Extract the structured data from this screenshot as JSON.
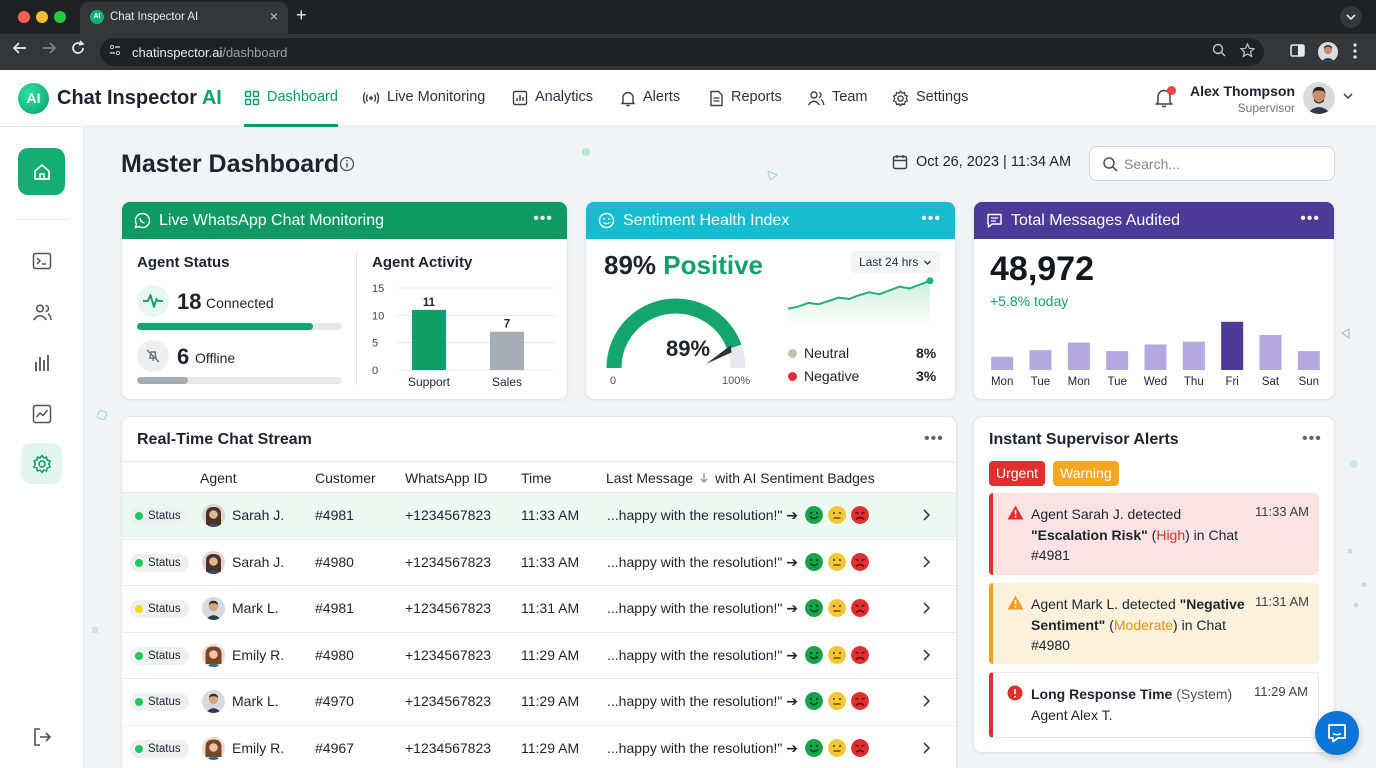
{
  "browser": {
    "tab_title": "Chat Inspector AI",
    "url_host": "chatinspector.ai",
    "url_path": "/dashboard"
  },
  "header": {
    "logo_text": "Chat Inspector",
    "logo_accent": "AI",
    "logo_mark": "AI",
    "nav": [
      {
        "label": "Dashboard",
        "icon": "grid-icon",
        "active": true
      },
      {
        "label": "Live Monitoring",
        "icon": "broadcast-icon"
      },
      {
        "label": "Analytics",
        "icon": "bar-chart-icon"
      },
      {
        "label": "Alerts",
        "icon": "bell-icon"
      },
      {
        "label": "Reports",
        "icon": "document-icon"
      },
      {
        "label": "Team",
        "icon": "users-icon"
      },
      {
        "label": "Settings",
        "icon": "gear-icon"
      }
    ],
    "user": {
      "name": "Alex Thompson",
      "role": "Supervisor"
    }
  },
  "sidebar": [
    "home-icon",
    "terminal-icon",
    "users-icon",
    "bar-chart-icon",
    "line-chart-icon",
    "gear-icon",
    "logout-icon"
  ],
  "page": {
    "title": "Master Dashboard",
    "datetime": "Oct 26, 2023 | 11:34 AM",
    "search_placeholder": "Search..."
  },
  "monitoring": {
    "title": "Live WhatsApp Chat Monitoring",
    "agent_status_title": "Agent Status",
    "connected_count": "18",
    "connected_label": "Connected",
    "connected_fraction": 0.86,
    "offline_count": "6",
    "offline_label": "Offline",
    "offline_fraction": 0.25,
    "agent_activity_title": "Agent Activity"
  },
  "sentiment": {
    "title": "Sentiment Health Index",
    "headline_pct": "89%",
    "headline_label": "Positive",
    "range": "Last 24 hrs",
    "gauge_value": "89%",
    "gauge_min": "0",
    "gauge_max": "100%",
    "gauge_fraction": 0.89,
    "legend": [
      {
        "label": "Neutral",
        "value": "8%",
        "color": "#c5bfae"
      },
      {
        "label": "Negative",
        "value": "3%",
        "color": "#e02f2f"
      }
    ]
  },
  "messages": {
    "title": "Total Messages Audited",
    "total": "48,972",
    "delta": "+5.8% today"
  },
  "chart_data": [
    {
      "type": "bar",
      "title": "Agent Activity",
      "categories": [
        "Support",
        "Sales"
      ],
      "values": [
        11,
        7
      ],
      "ylim": [
        0,
        15
      ],
      "yticks": [
        0,
        5,
        10,
        15
      ],
      "colors": [
        "#0f9f68",
        "#a7adb5"
      ],
      "data_labels": true,
      "grid": true
    },
    {
      "type": "line",
      "title": "Sentiment trend (Last 24 hrs)",
      "values": [
        32,
        36,
        44,
        41,
        48,
        55,
        52,
        60,
        66,
        62,
        70,
        78,
        74,
        82,
        90
      ],
      "ylim": [
        0,
        100
      ],
      "color": "#22b26f",
      "area": true
    },
    {
      "type": "bar",
      "title": "Total Messages Audited",
      "categories": [
        "Mon",
        "Tue",
        "Mon",
        "Tue",
        "Wed",
        "Thu",
        "Fri",
        "Sat",
        "Sun"
      ],
      "values": [
        14,
        21,
        29,
        20,
        27,
        30,
        51,
        37,
        20
      ],
      "ylim": [
        0,
        55
      ],
      "colors": [
        "#b5a8e0",
        "#b5a8e0",
        "#b5a8e0",
        "#b5a8e0",
        "#b5a8e0",
        "#b5a8e0",
        "#4b3a98",
        "#b5a8e0",
        "#b5a8e0"
      ]
    }
  ],
  "stream": {
    "title": "Real-Time Chat Stream",
    "columns": [
      "Agent",
      "Customer",
      "WhatsApp ID",
      "Time",
      "Last Message",
      "with AI Sentiment Badges"
    ],
    "rows": [
      {
        "status": "Status",
        "status_color": "#22c55e",
        "agent": "Sarah J.",
        "avatar": "f1",
        "customer": "#4981",
        "wa_id": "+1234567823",
        "time": "11:33 AM",
        "message": "...happy with the resolution!\" ➔",
        "highlight": true
      },
      {
        "status": "Status",
        "status_color": "#22c55e",
        "agent": "Sarah J.",
        "avatar": "f1",
        "customer": "#4980",
        "wa_id": "+1234567823",
        "time": "11:33 AM",
        "message": "...happy with the resolution!\" ➔"
      },
      {
        "status": "Status",
        "status_color": "#f5d90a",
        "agent": "Mark L.",
        "avatar": "m1",
        "customer": "#4981",
        "wa_id": "+1234567823",
        "time": "11:31 AM",
        "message": "...happy with the resolution!\" ➔"
      },
      {
        "status": "Status",
        "status_color": "#22c55e",
        "agent": "Emily R.",
        "avatar": "f2",
        "customer": "#4980",
        "wa_id": "+1234567823",
        "time": "11:29 AM",
        "message": "...happy with the resolution!\" ➔"
      },
      {
        "status": "Status",
        "status_color": "#22c55e",
        "agent": "Mark L.",
        "avatar": "m1",
        "customer": "#4970",
        "wa_id": "+1234567823",
        "time": "11:29 AM",
        "message": "...happy with the resolution!\" ➔"
      },
      {
        "status": "Status",
        "status_color": "#22c55e",
        "agent": "Emily R.",
        "avatar": "f2",
        "customer": "#4967",
        "wa_id": "+1234567823",
        "time": "11:29 AM",
        "message": "...happy with the resolution!\" ➔"
      }
    ]
  },
  "alerts": {
    "title": "Instant Supervisor Alerts",
    "badges": [
      "Urgent",
      "Warning"
    ],
    "items": [
      {
        "kind": "urgent",
        "pre": "Agent Sarah J. detected ",
        "quote": "\"Escalation Risk\"",
        "open": " (",
        "level": "High",
        "close": ") in Chat #4981",
        "time": "11:33 AM",
        "bg": "#fbe3e3",
        "accent": "#e02f2f",
        "level_color": "#e02f2f"
      },
      {
        "kind": "warning",
        "pre": "Agent Mark L. detected ",
        "quote": "\"Negative Sentiment\"",
        "open": " (",
        "level": "Moderate",
        "close": ") in Chat #4980",
        "time": "11:31 AM",
        "bg": "#fdf1dc",
        "accent": "#f0a020",
        "level_color": "#e5930f"
      },
      {
        "kind": "info",
        "title": "Long Response Time",
        "system": " (System)",
        "detail": "Agent Alex T.",
        "time": "11:29 AM",
        "bg": "#ffffff",
        "accent": "#e02f2f"
      }
    ]
  },
  "colors": {
    "brand": "#0b9b66",
    "monitor_head": "#0f9a64",
    "sentiment_head": "#18bcd0",
    "messages_head": "#4b3a98"
  }
}
